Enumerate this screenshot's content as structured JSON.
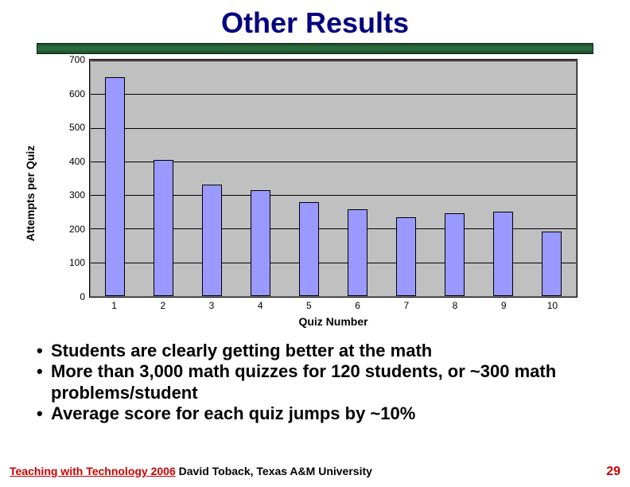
{
  "title": "Other Results",
  "chart": {
    "type": "bar",
    "ylabel": "Attempts per Quiz",
    "xlabel": "Quiz Number",
    "categories": [
      "1",
      "2",
      "3",
      "4",
      "5",
      "6",
      "7",
      "8",
      "9",
      "10"
    ],
    "values": [
      650,
      405,
      330,
      315,
      280,
      258,
      235,
      245,
      250,
      192
    ],
    "ylim": [
      0,
      700
    ],
    "ytick_step": 100,
    "yticks": [
      "0",
      "100",
      "200",
      "300",
      "400",
      "500",
      "600",
      "700"
    ],
    "bar_color": "#9999ff",
    "bar_border_color": "#000000",
    "plot_bg": "#c0c0c0",
    "grid_color": "#000000",
    "frame_border": "#000000",
    "bar_width_pct": 4.2,
    "slot_width_pct": 10,
    "ylabel_fontsize": 14,
    "xlabel_fontsize": 14,
    "tick_fontsize": 12
  },
  "bullets": [
    "Students are clearly getting better at the math",
    "More than 3,000 math quizzes for 120 students, or ~300 math problems/student",
    "Average score for each quiz jumps by ~10%"
  ],
  "footer": {
    "red_prefix": "Teaching with Technology 2006",
    "black_suffix": " David Toback, Texas A&M University",
    "page_number": "29"
  },
  "colors": {
    "title": "#000080",
    "divider_dark": "#1a4a2a",
    "divider_light": "#2d6b3f",
    "bullet_text": "#000000",
    "footer_red": "#cc0000"
  }
}
